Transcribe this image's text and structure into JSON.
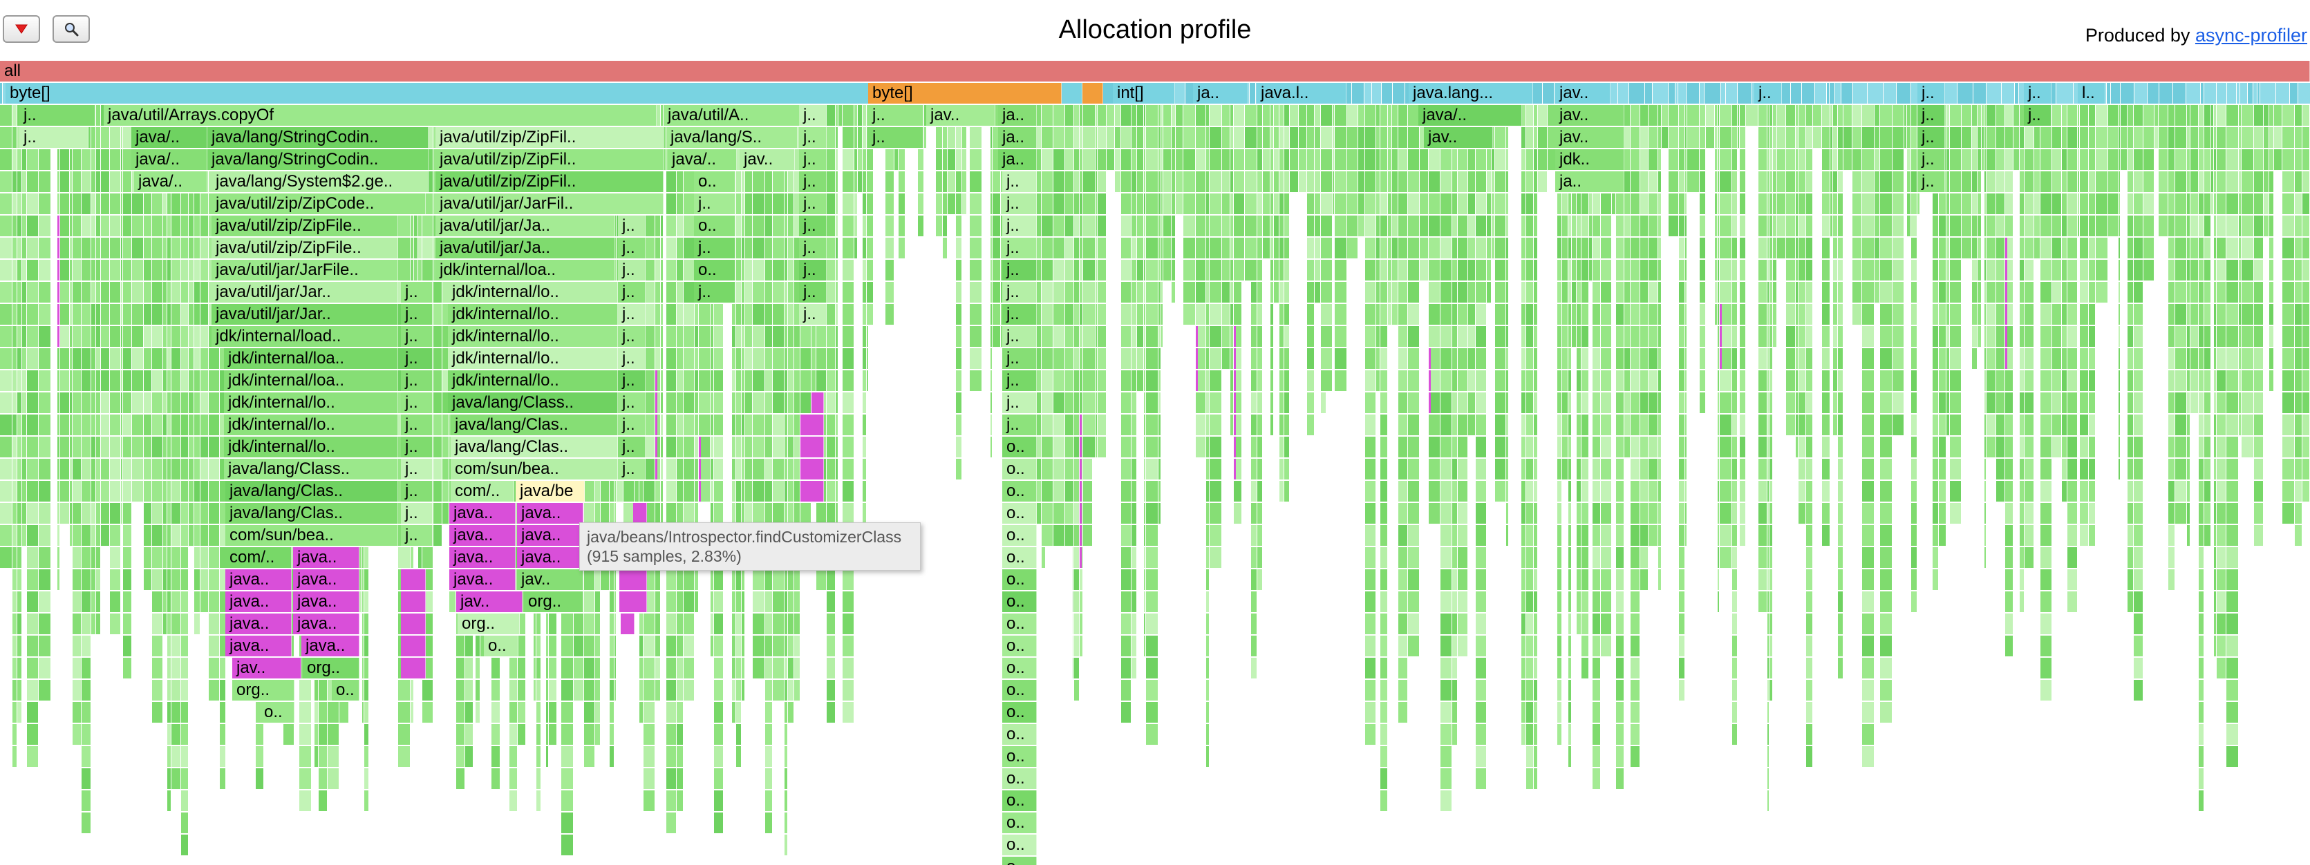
{
  "header": {
    "title": "Allocation profile",
    "produced_prefix": "Produced by ",
    "produced_link": "async-profiler",
    "reset_icon": "triangle-down-icon",
    "search_icon": "magnifier-icon"
  },
  "colors": {
    "root": "#e07676",
    "alloc_type": "#79d3e1",
    "alloc_type_dark": "#5fc5d6",
    "inlined_orange": "#f29d3a",
    "java_green": "#8de27c",
    "java_green_alt": "#6fd261",
    "native_magenta": "#d94fd9",
    "highlight": "#fff7c2"
  },
  "tooltip": {
    "method": "java/beans/Introspector.findCustomizerClass",
    "stats": "(915 samples, 2.83%)"
  },
  "frames": [
    [
      "all",
      0,
      0,
      3342,
      "root"
    ],
    [
      "byte[]",
      1,
      8,
      1250,
      "type"
    ],
    [
      "byte[]",
      1,
      1256,
      280,
      "orange"
    ],
    [
      "",
      1,
      1536,
      30,
      "type"
    ],
    [
      "",
      1,
      1566,
      30,
      "orange"
    ],
    [
      "int[]",
      1,
      1610,
      90,
      "type"
    ],
    [
      "ja..",
      1,
      1726,
      80,
      "type"
    ],
    [
      "java.l..",
      1,
      1818,
      130,
      "type"
    ],
    [
      "java.lang...",
      1,
      2038,
      180,
      "type"
    ],
    [
      "jav..",
      1,
      2250,
      80,
      "type"
    ],
    [
      "j..",
      1,
      2538,
      40,
      "type"
    ],
    [
      "j..",
      1,
      2774,
      40,
      "type"
    ],
    [
      "j..",
      1,
      2928,
      40,
      "type"
    ],
    [
      "l..",
      1,
      3006,
      40,
      "type"
    ],
    [
      "j..",
      2,
      28,
      110,
      "green"
    ],
    [
      "java/util/Arrays.copyOf",
      2,
      150,
      800,
      "green"
    ],
    [
      "java/util/A..",
      2,
      960,
      200,
      "green"
    ],
    [
      "j..",
      2,
      1156,
      40,
      "green"
    ],
    [
      "j..",
      2,
      1256,
      80,
      "green"
    ],
    [
      "jav..",
      2,
      1340,
      100,
      "green"
    ],
    [
      "ja..",
      2,
      1444,
      56,
      "green"
    ],
    [
      "java/..",
      2,
      2052,
      150,
      "green"
    ],
    [
      "jav..",
      2,
      2250,
      100,
      "green"
    ],
    [
      "j..",
      2,
      2774,
      40,
      "green"
    ],
    [
      "j..",
      2,
      2928,
      40,
      "green"
    ],
    [
      "j..",
      3,
      28,
      100,
      "green"
    ],
    [
      "java/..",
      3,
      190,
      110,
      "green"
    ],
    [
      "java/lang/StringCodin..",
      3,
      300,
      320,
      "green"
    ],
    [
      "java/util/zip/ZipFil..",
      3,
      630,
      330,
      "green"
    ],
    [
      "java/lang/S..",
      3,
      964,
      190,
      "green"
    ],
    [
      "j..",
      3,
      1156,
      40,
      "green"
    ],
    [
      "j..",
      3,
      1256,
      80,
      "green"
    ],
    [
      "ja..",
      3,
      1444,
      56,
      "green"
    ],
    [
      "jav..",
      3,
      2060,
      100,
      "green"
    ],
    [
      "jav..",
      3,
      2250,
      100,
      "green"
    ],
    [
      "j..",
      3,
      2774,
      40,
      "green"
    ],
    [
      "java/..",
      4,
      190,
      110,
      "green"
    ],
    [
      "java/lang/StringCodin..",
      4,
      300,
      320,
      "green"
    ],
    [
      "java/util/zip/ZipFil..",
      4,
      630,
      330,
      "green"
    ],
    [
      "java/..",
      4,
      966,
      100,
      "green"
    ],
    [
      "jav..",
      4,
      1070,
      80,
      "green"
    ],
    [
      "j..",
      4,
      1156,
      40,
      "green"
    ],
    [
      "ja..",
      4,
      1444,
      56,
      "green"
    ],
    [
      "jdk..",
      4,
      2250,
      100,
      "green"
    ],
    [
      "j..",
      4,
      2774,
      40,
      "green"
    ],
    [
      "java/..",
      5,
      194,
      106,
      "green"
    ],
    [
      "java/lang/System$2.ge..",
      5,
      306,
      314,
      "green"
    ],
    [
      "java/util/zip/ZipFil..",
      5,
      630,
      330,
      "green"
    ],
    [
      "o..",
      5,
      1004,
      60,
      "green"
    ],
    [
      "j..",
      5,
      1156,
      40,
      "green"
    ],
    [
      "j..",
      5,
      1450,
      50,
      "green"
    ],
    [
      "ja..",
      5,
      2250,
      100,
      "green"
    ],
    [
      "j..",
      5,
      2774,
      40,
      "green"
    ],
    [
      "java/util/zip/ZipCode..",
      6,
      306,
      310,
      "green"
    ],
    [
      "java/util/jar/JarFil..",
      6,
      630,
      330,
      "green"
    ],
    [
      "j..",
      6,
      1004,
      60,
      "green"
    ],
    [
      "j..",
      6,
      1156,
      40,
      "green"
    ],
    [
      "j..",
      6,
      1450,
      50,
      "green"
    ],
    [
      "java/util/zip/ZipFile..",
      7,
      306,
      270,
      "green"
    ],
    [
      "java/util/jar/Ja..",
      7,
      630,
      260,
      "green"
    ],
    [
      "j..",
      7,
      894,
      40,
      "green"
    ],
    [
      "o..",
      7,
      1004,
      60,
      "green"
    ],
    [
      "j..",
      7,
      1156,
      40,
      "green"
    ],
    [
      "j..",
      7,
      1450,
      50,
      "green"
    ],
    [
      "java/util/zip/ZipFile..",
      8,
      306,
      270,
      "green"
    ],
    [
      "java/util/jar/Ja..",
      8,
      630,
      260,
      "green"
    ],
    [
      "j..",
      8,
      894,
      40,
      "green"
    ],
    [
      "j..",
      8,
      1004,
      60,
      "green"
    ],
    [
      "j..",
      8,
      1156,
      40,
      "green"
    ],
    [
      "j..",
      8,
      1450,
      50,
      "green"
    ],
    [
      "java/util/jar/JarFile..",
      9,
      306,
      270,
      "green"
    ],
    [
      "jdk/internal/loa..",
      9,
      630,
      260,
      "green"
    ],
    [
      "j..",
      9,
      894,
      40,
      "green"
    ],
    [
      "o..",
      9,
      1004,
      60,
      "green"
    ],
    [
      "j..",
      9,
      1156,
      40,
      "green"
    ],
    [
      "j..",
      9,
      1450,
      50,
      "green"
    ],
    [
      "java/util/jar/Jar..",
      10,
      306,
      270,
      "green"
    ],
    [
      "j..",
      10,
      580,
      46,
      "green"
    ],
    [
      "jdk/internal/lo..",
      10,
      648,
      246,
      "green"
    ],
    [
      "j..",
      10,
      894,
      40,
      "green"
    ],
    [
      "j..",
      10,
      1004,
      60,
      "green"
    ],
    [
      "j..",
      10,
      1156,
      40,
      "green"
    ],
    [
      "j..",
      10,
      1450,
      50,
      "green"
    ],
    [
      "java/util/jar/Jar..",
      11,
      306,
      270,
      "green"
    ],
    [
      "j..",
      11,
      580,
      46,
      "green"
    ],
    [
      "jdk/internal/lo..",
      11,
      648,
      246,
      "green"
    ],
    [
      "j..",
      11,
      894,
      40,
      "green"
    ],
    [
      "j..",
      11,
      1156,
      40,
      "green"
    ],
    [
      "j..",
      11,
      1450,
      50,
      "green"
    ],
    [
      "jdk/internal/load..",
      12,
      306,
      270,
      "green"
    ],
    [
      "j..",
      12,
      580,
      46,
      "green"
    ],
    [
      "jdk/internal/lo..",
      12,
      648,
      246,
      "green"
    ],
    [
      "j..",
      12,
      894,
      40,
      "green"
    ],
    [
      "j..",
      12,
      1450,
      50,
      "green"
    ],
    [
      "jdk/internal/loa..",
      13,
      324,
      252,
      "green"
    ],
    [
      "j..",
      13,
      580,
      46,
      "green"
    ],
    [
      "jdk/internal/lo..",
      13,
      648,
      246,
      "green"
    ],
    [
      "j..",
      13,
      894,
      40,
      "green"
    ],
    [
      "j..",
      13,
      1450,
      50,
      "green"
    ],
    [
      "jdk/internal/loa..",
      14,
      324,
      252,
      "green"
    ],
    [
      "j..",
      14,
      580,
      46,
      "green"
    ],
    [
      "jdk/internal/lo..",
      14,
      648,
      246,
      "green"
    ],
    [
      "j..",
      14,
      894,
      40,
      "green"
    ],
    [
      "j..",
      14,
      1450,
      50,
      "green"
    ],
    [
      "jdk/internal/lo..",
      15,
      324,
      252,
      "green"
    ],
    [
      "j..",
      15,
      580,
      46,
      "green"
    ],
    [
      "java/lang/Class..",
      15,
      648,
      246,
      "green"
    ],
    [
      "j..",
      15,
      894,
      40,
      "green"
    ],
    [
      "",
      15,
      1174,
      18,
      "magenta"
    ],
    [
      "j..",
      15,
      1450,
      50,
      "green"
    ],
    [
      "jdk/internal/lo..",
      16,
      324,
      252,
      "green"
    ],
    [
      "j..",
      16,
      580,
      46,
      "green"
    ],
    [
      "java/lang/Clas..",
      16,
      652,
      242,
      "green"
    ],
    [
      "j..",
      16,
      894,
      40,
      "green"
    ],
    [
      "",
      16,
      1158,
      34,
      "magenta"
    ],
    [
      "j..",
      16,
      1450,
      50,
      "green"
    ],
    [
      "jdk/internal/lo..",
      17,
      324,
      252,
      "green"
    ],
    [
      "j..",
      17,
      580,
      46,
      "green"
    ],
    [
      "java/lang/Clas..",
      17,
      652,
      242,
      "green"
    ],
    [
      "j..",
      17,
      894,
      40,
      "green"
    ],
    [
      "",
      17,
      1158,
      34,
      "magenta"
    ],
    [
      "o..",
      17,
      1450,
      50,
      "green"
    ],
    [
      "java/lang/Class..",
      18,
      324,
      252,
      "green"
    ],
    [
      "j..",
      18,
      580,
      46,
      "green"
    ],
    [
      "com/sun/bea..",
      18,
      652,
      242,
      "green"
    ],
    [
      "j..",
      18,
      894,
      40,
      "green"
    ],
    [
      "",
      18,
      1158,
      34,
      "magenta"
    ],
    [
      "o..",
      18,
      1450,
      50,
      "green"
    ],
    [
      "java/lang/Clas..",
      19,
      326,
      250,
      "green"
    ],
    [
      "j..",
      19,
      580,
      46,
      "green"
    ],
    [
      "com/..",
      19,
      652,
      92,
      "green"
    ],
    [
      "java/be",
      19,
      746,
      100,
      "highlight"
    ],
    [
      "",
      19,
      1158,
      34,
      "magenta"
    ],
    [
      "o..",
      19,
      1450,
      50,
      "green"
    ],
    [
      "java/lang/Clas..",
      20,
      326,
      250,
      "green"
    ],
    [
      "j..",
      20,
      580,
      46,
      "green"
    ],
    [
      "java..",
      20,
      650,
      96,
      "magenta"
    ],
    [
      "java..",
      20,
      748,
      96,
      "magenta"
    ],
    [
      "",
      20,
      916,
      20,
      "magenta"
    ],
    [
      "o..",
      20,
      1450,
      50,
      "green"
    ],
    [
      "com/sun/bea..",
      21,
      326,
      250,
      "green"
    ],
    [
      "j..",
      21,
      580,
      46,
      "green"
    ],
    [
      "java..",
      21,
      650,
      96,
      "magenta"
    ],
    [
      "java..",
      21,
      748,
      96,
      "magenta"
    ],
    [
      "",
      21,
      916,
      20,
      "magenta"
    ],
    [
      "o..",
      21,
      1450,
      50,
      "green"
    ],
    [
      "com/..",
      22,
      326,
      96,
      "green"
    ],
    [
      "java..",
      22,
      424,
      96,
      "magenta"
    ],
    [
      "java..",
      22,
      650,
      96,
      "magenta"
    ],
    [
      "java..",
      22,
      748,
      96,
      "magenta"
    ],
    [
      "o..",
      22,
      1450,
      50,
      "green"
    ],
    [
      "java..",
      23,
      326,
      96,
      "magenta"
    ],
    [
      "java..",
      23,
      424,
      96,
      "magenta"
    ],
    [
      "",
      23,
      580,
      36,
      "magenta"
    ],
    [
      "java..",
      23,
      650,
      96,
      "magenta"
    ],
    [
      "jav..",
      23,
      748,
      96,
      "green"
    ],
    [
      "",
      23,
      896,
      40,
      "magenta"
    ],
    [
      "o..",
      23,
      1450,
      50,
      "green"
    ],
    [
      "java..",
      24,
      326,
      96,
      "magenta"
    ],
    [
      "java..",
      24,
      424,
      96,
      "magenta"
    ],
    [
      "",
      24,
      580,
      36,
      "magenta"
    ],
    [
      "jav..",
      24,
      660,
      96,
      "magenta"
    ],
    [
      "org..",
      24,
      758,
      86,
      "green"
    ],
    [
      "",
      24,
      896,
      40,
      "magenta"
    ],
    [
      "o..",
      24,
      1450,
      50,
      "green"
    ],
    [
      "java..",
      25,
      326,
      96,
      "magenta"
    ],
    [
      "java..",
      25,
      424,
      96,
      "magenta"
    ],
    [
      "",
      25,
      580,
      36,
      "magenta"
    ],
    [
      "org..",
      25,
      662,
      90,
      "green"
    ],
    [
      "",
      25,
      898,
      20,
      "magenta"
    ],
    [
      "o..",
      25,
      1450,
      50,
      "green"
    ],
    [
      "java..",
      26,
      326,
      96,
      "magenta"
    ],
    [
      "java..",
      26,
      436,
      84,
      "magenta"
    ],
    [
      "",
      26,
      580,
      36,
      "magenta"
    ],
    [
      "o..",
      26,
      700,
      50,
      "green"
    ],
    [
      "o..",
      26,
      1450,
      50,
      "green"
    ],
    [
      "jav..",
      27,
      336,
      100,
      "magenta"
    ],
    [
      "org..",
      27,
      438,
      82,
      "green"
    ],
    [
      "",
      27,
      580,
      36,
      "magenta"
    ],
    [
      "o..",
      27,
      1450,
      50,
      "green"
    ],
    [
      "org..",
      28,
      336,
      90,
      "green"
    ],
    [
      "o..",
      28,
      480,
      40,
      "green"
    ],
    [
      "o..",
      28,
      1450,
      50,
      "green"
    ],
    [
      "o..",
      29,
      376,
      50,
      "green"
    ],
    [
      "o..",
      29,
      1450,
      50,
      "green"
    ],
    [
      "o..",
      30,
      1450,
      50,
      "green"
    ],
    [
      "o..",
      31,
      1450,
      50,
      "green"
    ],
    [
      "o..",
      32,
      1450,
      50,
      "green"
    ],
    [
      "o..",
      33,
      1450,
      50,
      "green"
    ],
    [
      "o..",
      34,
      1450,
      50,
      "green"
    ],
    [
      "o..",
      35,
      1450,
      50,
      "green"
    ],
    [
      "o..",
      36,
      1450,
      50,
      "green"
    ]
  ]
}
